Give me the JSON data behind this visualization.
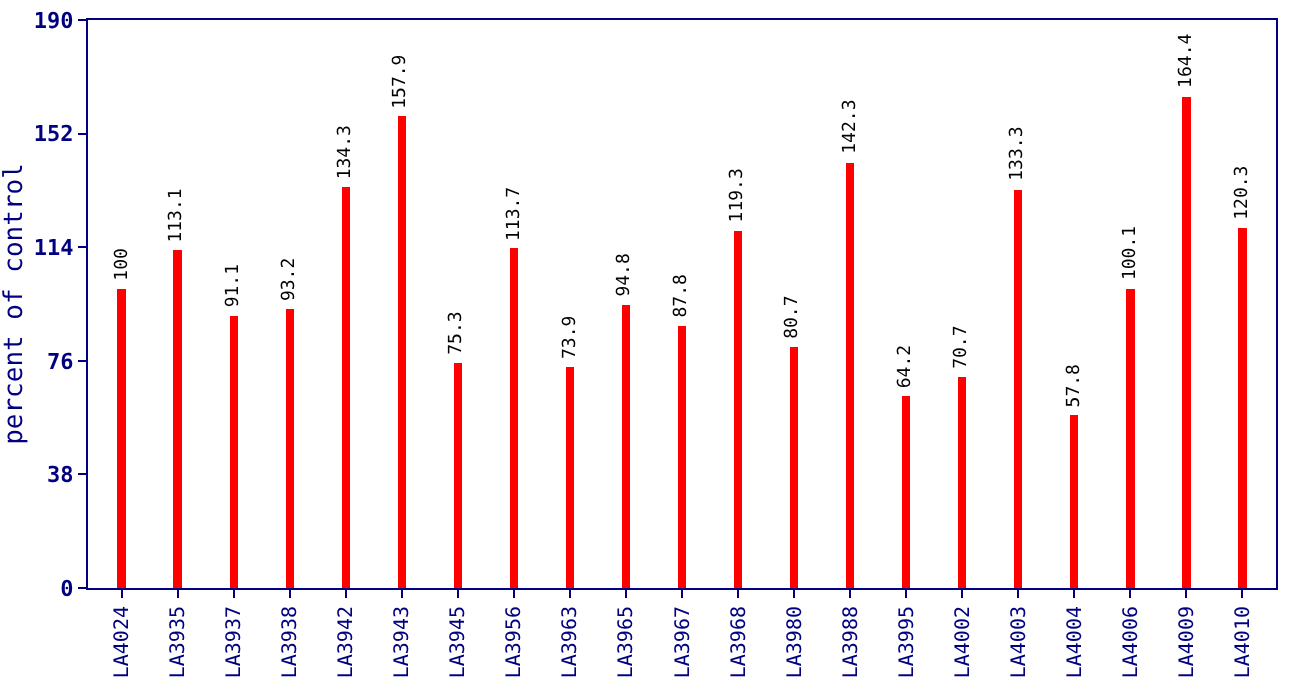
{
  "chart_data": {
    "type": "bar",
    "ylabel": "percent of control",
    "categories": [
      "LA4024",
      "LA3935",
      "LA3937",
      "LA3938",
      "LA3942",
      "LA3943",
      "LA3945",
      "LA3956",
      "LA3963",
      "LA3965",
      "LA3967",
      "LA3968",
      "LA3980",
      "LA3988",
      "LA3995",
      "LA4002",
      "LA4003",
      "LA4004",
      "LA4006",
      "LA4009",
      "LA4010"
    ],
    "values": [
      100,
      113.1,
      91.1,
      93.2,
      134.3,
      157.9,
      75.3,
      113.7,
      73.9,
      94.8,
      87.8,
      119.3,
      80.7,
      142.3,
      64.2,
      70.7,
      133.3,
      57.8,
      100.1,
      164.4,
      120.3
    ],
    "color": "#ff0000",
    "ylim": [
      0,
      190
    ],
    "yticks": [
      0,
      38,
      76,
      114,
      152,
      190
    ],
    "grid": false,
    "data_labels": true
  }
}
